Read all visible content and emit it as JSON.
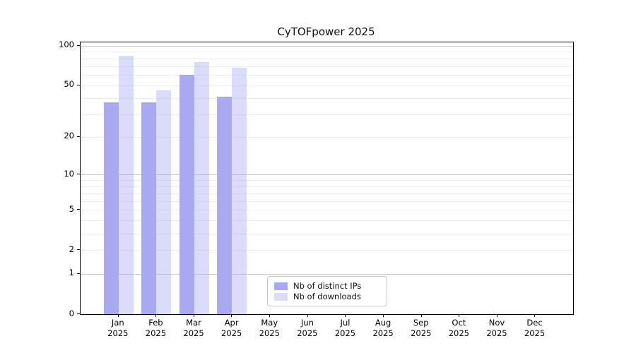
{
  "title": "CyTOFpower 2025",
  "chart_data": {
    "type": "bar",
    "title": "CyTOFpower 2025",
    "categories": [
      "Jan 2025",
      "Feb 2025",
      "Mar 2025",
      "Apr 2025",
      "May 2025",
      "Jun 2025",
      "Jul 2025",
      "Aug 2025",
      "Sep 2025",
      "Oct 2025",
      "Nov 2025",
      "Dec 2025"
    ],
    "series": [
      {
        "name": "Nb of distinct IPs",
        "color": "#a9a9f2",
        "base_rgb": [
          169,
          169,
          242
        ],
        "alpha": 1.0,
        "values": [
          37,
          37,
          60,
          41,
          null,
          null,
          null,
          null,
          null,
          null,
          null,
          null
        ]
      },
      {
        "name": "Nb of downloads",
        "color": "#dcdcf8",
        "base_rgb": [
          169,
          169,
          242
        ],
        "alpha": 0.42,
        "values": [
          84,
          46,
          75,
          68,
          null,
          null,
          null,
          null,
          null,
          null,
          null,
          null
        ]
      }
    ],
    "yscale": "log1p",
    "yticks": [
      0,
      1,
      2,
      5,
      10,
      20,
      50,
      100
    ],
    "ygrid_major": [
      1,
      10,
      100
    ],
    "ygrid_minor": [
      2,
      3,
      4,
      5,
      6,
      7,
      8,
      9,
      20,
      30,
      40,
      50,
      60,
      70,
      80,
      90
    ],
    "ylim": [
      0,
      104
    ],
    "grid": "horizontal",
    "legend_position": "inside-bottom-center"
  },
  "legend": {
    "items": [
      {
        "label": "Nb of distinct IPs"
      },
      {
        "label": "Nb of downloads"
      }
    ]
  }
}
